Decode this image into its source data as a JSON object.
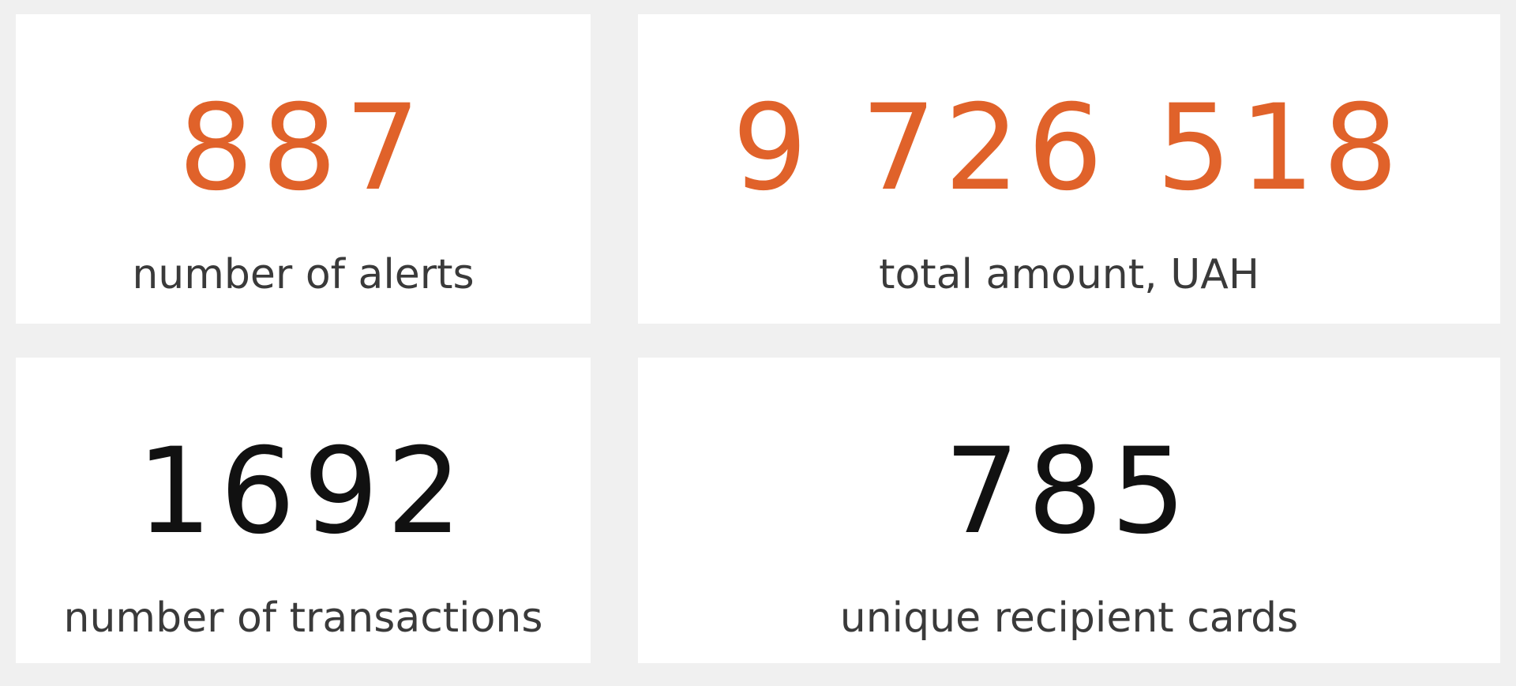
{
  "cards": [
    {
      "value": "887",
      "label": "number of alerts",
      "color": "#e0622a"
    },
    {
      "value": "9 726 518",
      "label": "total amount, UAH",
      "color": "#e0622a"
    },
    {
      "value": "1692",
      "label": "number of transactions",
      "color": "#111111"
    },
    {
      "value": "785",
      "label": "unique recipient cards",
      "color": "#111111"
    }
  ]
}
